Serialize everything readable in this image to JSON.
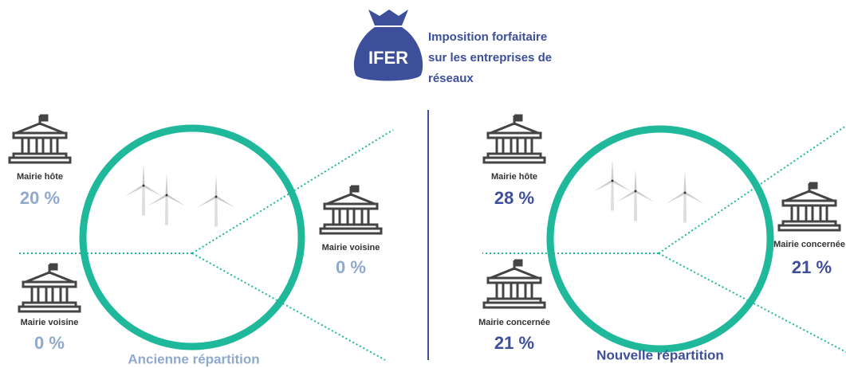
{
  "header": {
    "badge": "IFER",
    "title_lines": [
      "Imposition forfaitaire",
      "sur les entreprises de",
      "réseaux"
    ]
  },
  "panels": [
    {
      "caption": "Ancienne répartition",
      "mairies": [
        {
          "label": "Mairie hôte",
          "value": "20 %"
        },
        {
          "label": "Mairie voisine",
          "value": "0 %"
        },
        {
          "label": "Mairie voisine",
          "value": "0 %"
        }
      ]
    },
    {
      "caption": "Nouvelle répartition",
      "mairies": [
        {
          "label": "Mairie hôte",
          "value": "28 %"
        },
        {
          "label": "Mairie concernée",
          "value": "21 %"
        },
        {
          "label": "Mairie concernée",
          "value": "21 %"
        }
      ]
    }
  ]
}
